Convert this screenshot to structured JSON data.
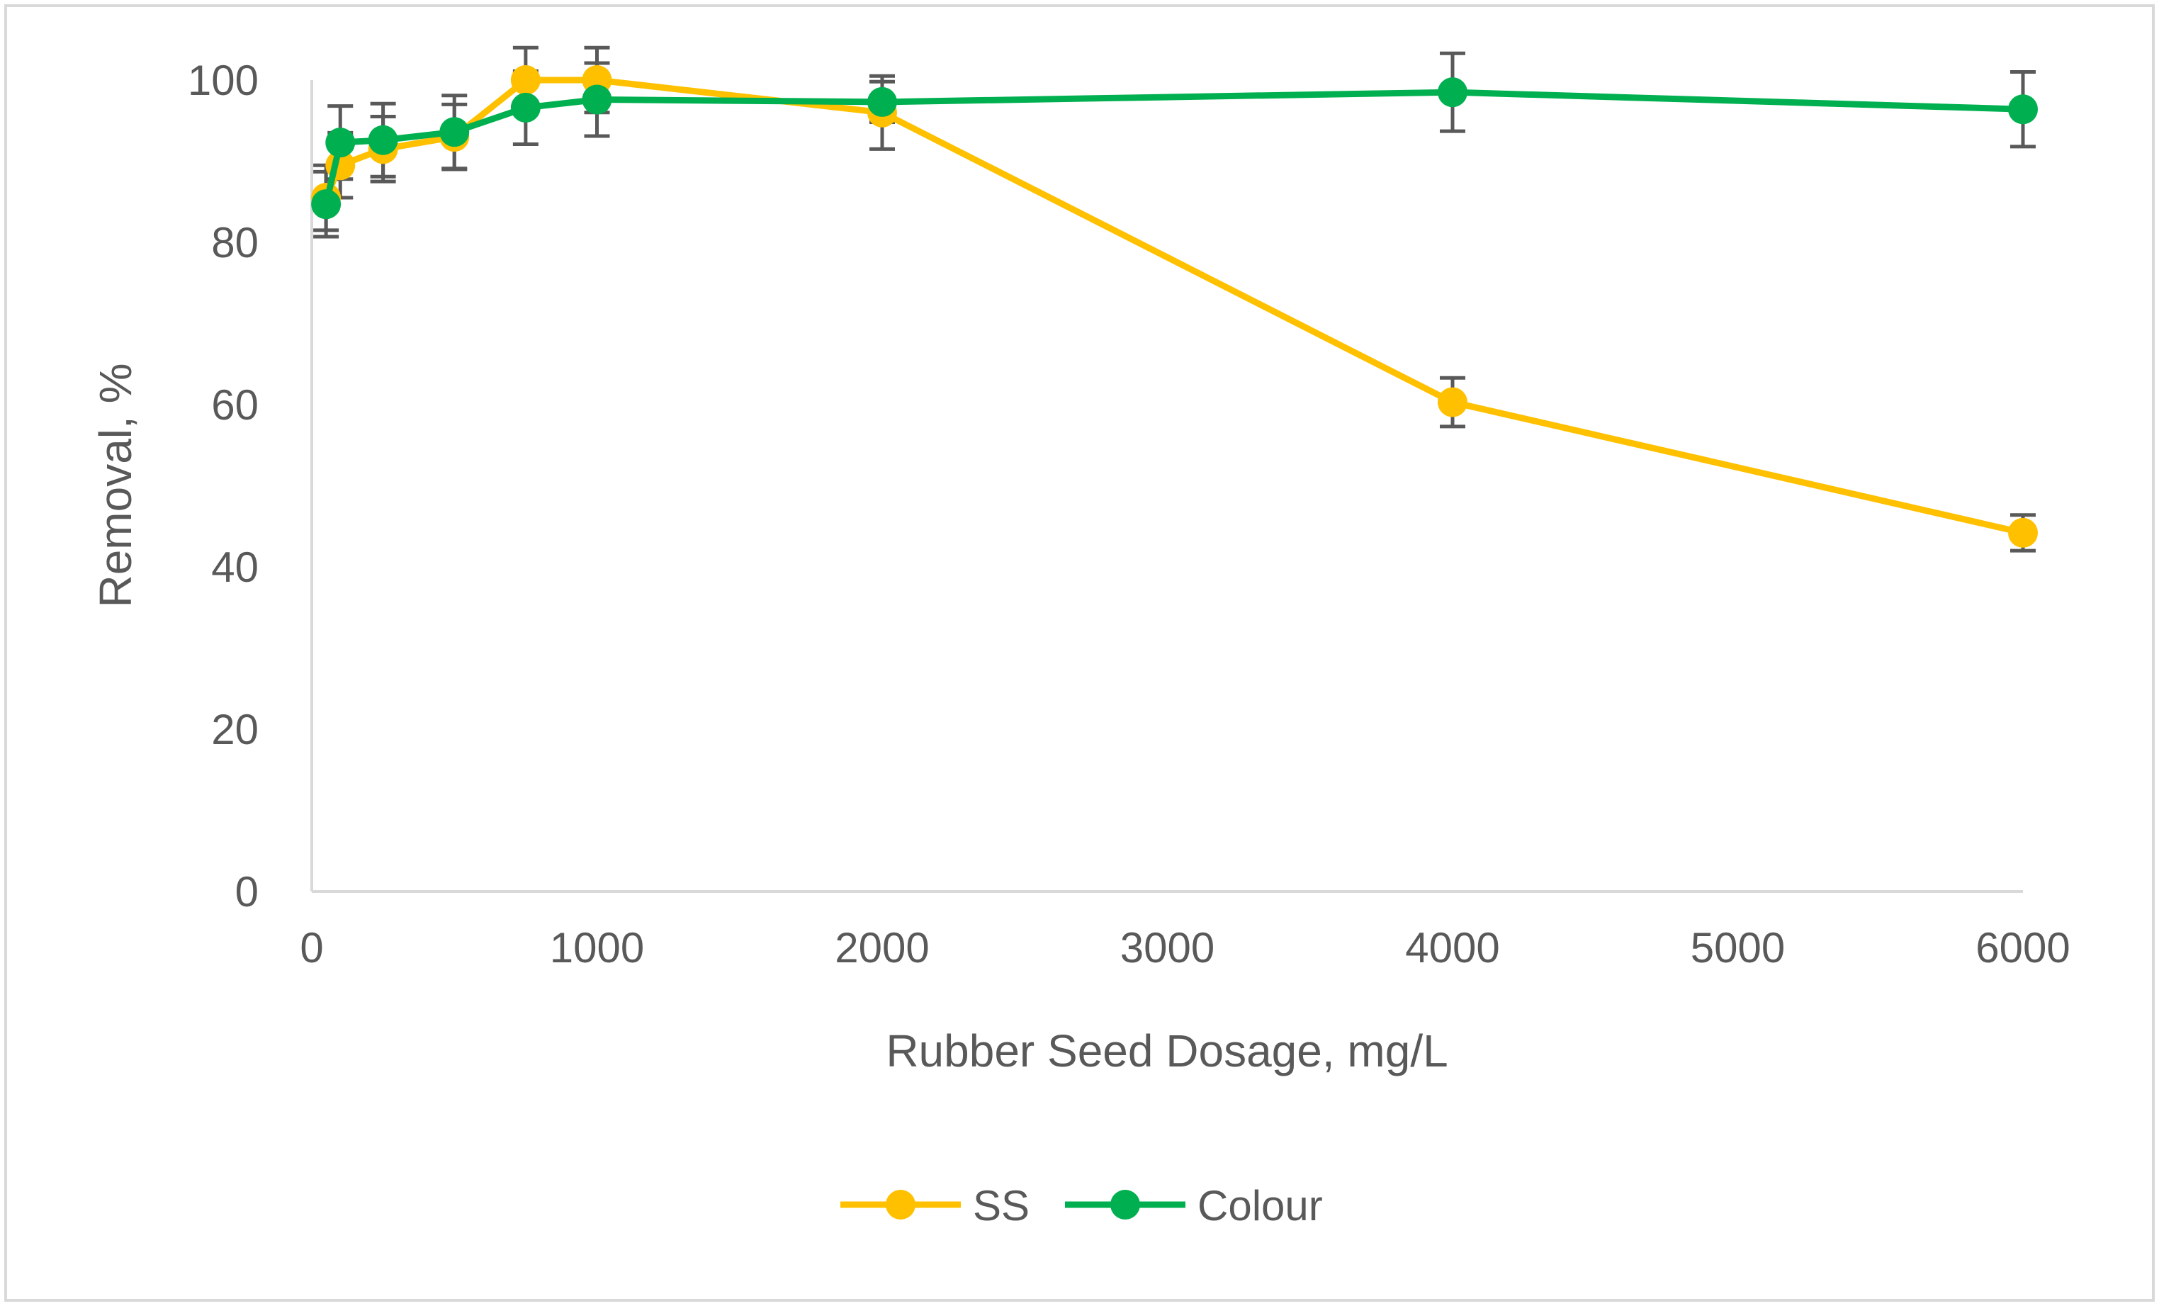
{
  "chart_data": {
    "type": "line",
    "title": "",
    "xlabel": "Rubber Seed Dosage, mg/L",
    "ylabel": "Removal, %",
    "xlim": [
      0,
      6000
    ],
    "ylim": [
      0,
      100
    ],
    "x_ticks": [
      0,
      1000,
      2000,
      3000,
      4000,
      5000,
      6000
    ],
    "y_ticks": [
      0,
      20,
      40,
      60,
      80,
      100
    ],
    "grid": false,
    "legend_position": "bottom",
    "series": [
      {
        "name": "SS",
        "color": "#FFC000",
        "x": [
          50,
          100,
          250,
          500,
          750,
          1000,
          2000,
          4000,
          6000
        ],
        "y": [
          85.5,
          89.5,
          91.5,
          93,
          100,
          100,
          96,
          60.3,
          44.2
        ],
        "error": [
          4,
          4,
          4,
          4,
          4,
          4,
          4.5,
          3,
          2.2
        ]
      },
      {
        "name": "Colour",
        "color": "#00B050",
        "x": [
          50,
          100,
          250,
          500,
          750,
          1000,
          2000,
          4000,
          6000
        ],
        "y": [
          84.7,
          92.3,
          92.6,
          93.6,
          96.6,
          97.6,
          97.3,
          98.5,
          96.4
        ],
        "error": [
          4,
          4.5,
          4.5,
          4.5,
          4.5,
          4.5,
          2.5,
          4.8,
          4.6
        ]
      }
    ],
    "error_bar_color": "#595959"
  }
}
